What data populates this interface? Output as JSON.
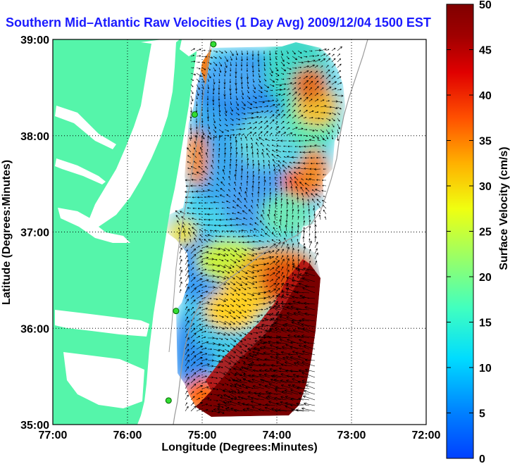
{
  "title": "Southern Mid–Atlantic Raw Velocities (1 Day Avg) 2009/12/04 1500 EST",
  "map": {
    "xlabel": "Longitude (Degrees:Minutes)",
    "ylabel": "Latitude (Degrees:Minutes)",
    "lon_range": [
      -77,
      -72
    ],
    "lat_range": [
      35,
      39
    ],
    "lon_ticks": [
      "77:00",
      "76:00",
      "75:00",
      "74:00",
      "73:00",
      "72:00"
    ],
    "lat_ticks": [
      "39:00",
      "38:00",
      "37:00",
      "36:00",
      "35:00"
    ],
    "grid": "dotted",
    "land_color": "#55f5aa",
    "sites": [
      {
        "lon": -74.85,
        "lat": 38.95
      },
      {
        "lon": -75.1,
        "lat": 38.22
      },
      {
        "lon": -75.35,
        "lat": 36.18
      },
      {
        "lon": -75.45,
        "lat": 35.25
      }
    ]
  },
  "colorbar": {
    "label": "Surface Velocity (cm/s)",
    "min": 0,
    "max": 50,
    "ticks": [
      "50",
      "45",
      "40",
      "35",
      "30",
      "25",
      "20",
      "15",
      "10",
      "5",
      "0"
    ]
  }
}
